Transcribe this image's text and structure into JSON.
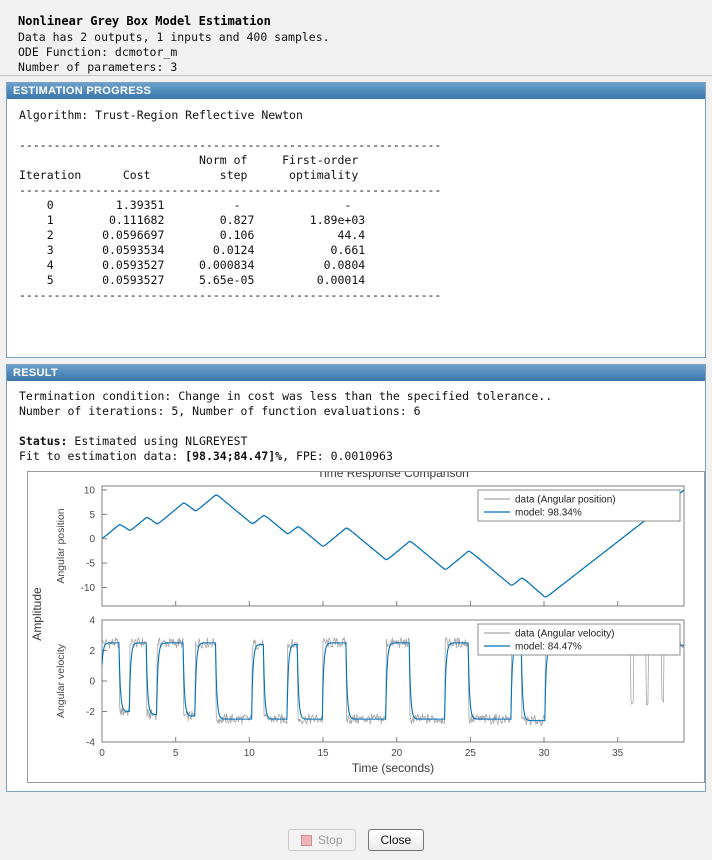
{
  "header": {
    "title": "Nonlinear Grey Box Model Estimation",
    "line1": "Data has 2 outputs, 1 inputs and 400 samples.",
    "line2": "ODE Function: dcmotor_m",
    "line3": "Number of parameters: 3"
  },
  "progress_panel": {
    "title": "ESTIMATION PROGRESS",
    "text": "Algorithm: Trust-Region Reflective Newton\n\n-------------------------------------------------------------\n                          Norm of     First-order\nIteration      Cost          step      optimality\n-------------------------------------------------------------\n    0         1.39351          -               -\n    1        0.111682        0.827        1.89e+03\n    2       0.0596697        0.106            44.4\n    3       0.0593534       0.0124           0.661\n    4       0.0593527     0.000834          0.0804\n    5       0.0593527     5.65e-05         0.00014\n-------------------------------------------------------------"
  },
  "result_panel": {
    "title": "RESULT",
    "termination": "Termination condition: Change in cost was less than the specified tolerance..",
    "iterations": "Number of iterations: 5, Number of function evaluations: 6",
    "status_label": "Status:",
    "status_text": " Estimated using NLGREYEST",
    "fit_prefix": "Fit to estimation data: ",
    "fit_value": "[98.34;84.47]%",
    "fit_suffix": ", FPE: 0.0010963"
  },
  "footer": {
    "stop_label": "Stop",
    "close_label": "Close"
  },
  "chart_data": {
    "type": "line",
    "title": "Time Response Comparison",
    "xlabel": "Time (seconds)",
    "shared_ylabel": "Amplitude",
    "x_range": [
      0,
      39.5
    ],
    "xticks": [
      0,
      5,
      10,
      15,
      20,
      25,
      30,
      35
    ],
    "sample_step": 0.05,
    "colors": {
      "data": "#a6a6a6",
      "model": "#0072bd"
    },
    "subplots": [
      {
        "ylabel": "Angular position",
        "ylim": [
          -13.8,
          10.8
        ],
        "yticks": [
          -10,
          -5,
          0,
          5,
          10
        ],
        "legend": [
          "data (Angular position)",
          "model: 98.34%"
        ],
        "series_rule": "position = time integral of angular velocity",
        "data_noise_amp": 0.22
      },
      {
        "ylabel": "Angular velocity",
        "ylim": [
          -4,
          4
        ],
        "yticks": [
          -4,
          -2,
          0,
          2,
          4
        ],
        "legend": [
          "data (Angular velocity)",
          "model: 84.47%"
        ],
        "velocity_segments": [
          [
            0,
            2.5
          ],
          [
            1.2,
            -2.0
          ],
          [
            1.9,
            2.5
          ],
          [
            3.0,
            -2.2
          ],
          [
            3.7,
            2.5
          ],
          [
            5.5,
            -2.3
          ],
          [
            6.3,
            2.5
          ],
          [
            7.7,
            -2.5
          ],
          [
            10.2,
            2.4
          ],
          [
            11.0,
            -2.5
          ],
          [
            12.6,
            2.4
          ],
          [
            13.3,
            -2.5
          ],
          [
            15.0,
            2.5
          ],
          [
            16.6,
            -2.5
          ],
          [
            19.3,
            2.5
          ],
          [
            20.9,
            -2.5
          ],
          [
            23.3,
            2.5
          ],
          [
            24.9,
            -2.5
          ],
          [
            27.8,
            2.5
          ],
          [
            28.5,
            -2.6
          ],
          [
            30.1,
            2.35
          ]
        ],
        "data_noise_amp": 0.7,
        "data_spikes": [
          [
            35.9,
            36.06,
            -1.4
          ],
          [
            36.95,
            37.1,
            -1.6
          ],
          [
            37.95,
            38.1,
            -1.3
          ]
        ],
        "smoothing_tau": 0.09
      }
    ]
  }
}
